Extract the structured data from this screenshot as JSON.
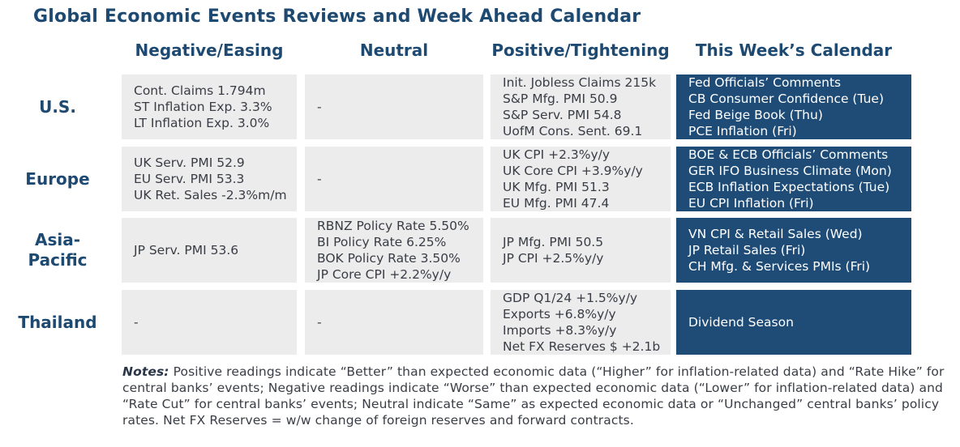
{
  "title": "Global Economic Events Reviews and Week Ahead Calendar",
  "columns": [
    "Negative/Easing",
    "Neutral",
    "Positive/Tightening",
    "This Week’s Calendar"
  ],
  "rows": [
    {
      "label": "U.S.",
      "negative": [
        "Cont. Claims 1.794m",
        "ST Inflation Exp. 3.3%",
        "LT Inflation Exp. 3.0%"
      ],
      "neutral": [
        "-"
      ],
      "positive": [
        "Init. Jobless Claims 215k",
        "S&P Mfg. PMI 50.9",
        "S&P Serv. PMI 54.8",
        "UofM Cons. Sent. 69.1"
      ],
      "calendar": [
        "Fed Officials’ Comments",
        "CB Consumer Confidence (Tue)",
        "Fed Beige Book (Thu)",
        "PCE Inflation (Fri)"
      ]
    },
    {
      "label": "Europe",
      "negative": [
        "UK Serv. PMI 52.9",
        "EU Serv. PMI 53.3",
        "UK Ret. Sales -2.3%m/m"
      ],
      "neutral": [
        "-"
      ],
      "positive": [
        "UK CPI +2.3%y/y",
        "UK Core CPI +3.9%y/y",
        "UK Mfg. PMI 51.3",
        "EU Mfg. PMI 47.4"
      ],
      "calendar": [
        "BOE & ECB Officials’ Comments",
        "GER IFO Business Climate (Mon)",
        "ECB Inflation Expectations (Tue)",
        "EU CPI Inflation (Fri)"
      ]
    },
    {
      "label": "Asia-\nPacific",
      "negative": [
        "JP Serv. PMI 53.6"
      ],
      "neutral": [
        "RBNZ Policy Rate 5.50%",
        "BI Policy Rate 6.25%",
        "BOK Policy Rate 3.50%",
        "JP Core CPI +2.2%y/y"
      ],
      "positive": [
        "JP Mfg. PMI 50.5",
        "JP CPI +2.5%y/y"
      ],
      "calendar": [
        "VN CPI & Retail Sales (Wed)",
        "JP Retail Sales (Fri)",
        "CH Mfg. & Services PMIs (Fri)"
      ]
    },
    {
      "label": "Thailand",
      "negative": [
        "-"
      ],
      "neutral": [
        "-"
      ],
      "positive": [
        "GDP Q1/24 +1.5%y/y",
        "Exports +6.8%y/y",
        "Imports +8.3%y/y",
        "Net FX Reserves $ +2.1b"
      ],
      "calendar": [
        "Dividend Season"
      ]
    }
  ],
  "notes": {
    "label": "Notes:",
    "text": " Positive readings indicate “Better” than expected economic data (“Higher” for inflation-related data) and “Rate Hike” for central banks’ events; Negative readings indicate “Worse” than expected economic data (“Lower” for inflation-related data) and “Rate Cut” for central banks’ events; Neutral indicate “Same” as expected economic data or “Unchanged” central banks’ policy rates. Net FX Reserves = w/w change of foreign reserves and forward contracts."
  },
  "colors": {
    "header_text": "#1e4a72",
    "calendar_bg": "#1f4c77",
    "cell_bg": "#ececec"
  }
}
